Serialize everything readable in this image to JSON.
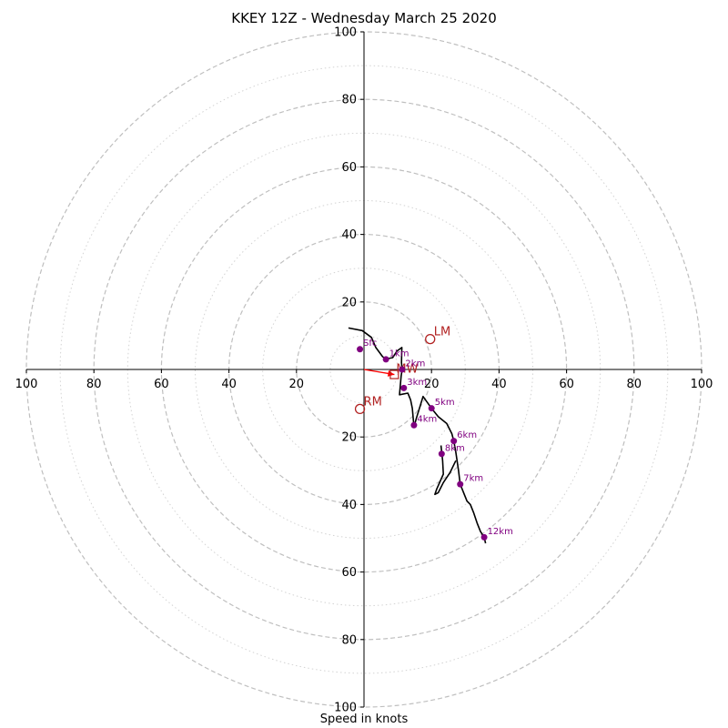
{
  "chart_data": {
    "type": "hodograph",
    "title": "KKEY 12Z - Wednesday March 25 2020",
    "xlabel": "Speed in knots",
    "ring_major": [
      20,
      40,
      60,
      80,
      100
    ],
    "ring_minor": [
      10,
      30,
      50,
      70,
      90
    ],
    "x_ticks": [
      {
        "value": -100,
        "label": "100"
      },
      {
        "value": -80,
        "label": "80"
      },
      {
        "value": -60,
        "label": "60"
      },
      {
        "value": -40,
        "label": "40"
      },
      {
        "value": -20,
        "label": "20"
      },
      {
        "value": 20,
        "label": "20"
      },
      {
        "value": 40,
        "label": "40"
      },
      {
        "value": 60,
        "label": "60"
      },
      {
        "value": 80,
        "label": "80"
      },
      {
        "value": 100,
        "label": "100"
      }
    ],
    "y_ticks": [
      {
        "value": 100,
        "label": "100"
      },
      {
        "value": 80,
        "label": "80"
      },
      {
        "value": 60,
        "label": "60"
      },
      {
        "value": 40,
        "label": "40"
      },
      {
        "value": 20,
        "label": "20"
      },
      {
        "value": -20,
        "label": "20"
      },
      {
        "value": -40,
        "label": "40"
      },
      {
        "value": -60,
        "label": "60"
      },
      {
        "value": -80,
        "label": "80"
      },
      {
        "value": -100,
        "label": "100"
      }
    ],
    "hodograph": [
      [
        -4.6,
        12.3
      ],
      [
        -0.5,
        11.5
      ],
      [
        2.2,
        9.5
      ],
      [
        3.5,
        6.5
      ],
      [
        5.5,
        3.8
      ],
      [
        6.5,
        3.1
      ],
      [
        8.5,
        3.5
      ],
      [
        9.8,
        5.5
      ],
      [
        11.2,
        6.5
      ],
      [
        11.1,
        2.0
      ],
      [
        11.3,
        0.0
      ],
      [
        11.0,
        -2.0
      ],
      [
        10.5,
        -7.5
      ],
      [
        13.0,
        -7.0
      ],
      [
        13.8,
        -9.0
      ],
      [
        14.3,
        -11.5
      ],
      [
        14.8,
        -17.0
      ],
      [
        15.5,
        -14.5
      ],
      [
        17.5,
        -8.0
      ],
      [
        20.0,
        -11.5
      ],
      [
        22.0,
        -14.0
      ],
      [
        24.5,
        -16.0
      ],
      [
        26.0,
        -19.0
      ],
      [
        26.6,
        -21.2
      ],
      [
        27.2,
        -24.5
      ],
      [
        28.0,
        -30.0
      ],
      [
        28.5,
        -34.0
      ],
      [
        30.5,
        -39.0
      ],
      [
        31.5,
        -40.0
      ],
      [
        32.5,
        -42.5
      ],
      [
        33.5,
        -45.5
      ],
      [
        34.5,
        -48.0
      ],
      [
        35.6,
        -49.7
      ],
      [
        36.0,
        -51.5
      ]
    ],
    "hodograph_loop": [
      [
        22.8,
        -22.5
      ],
      [
        23.3,
        -27.0
      ],
      [
        23.5,
        -31.0
      ],
      [
        21.5,
        -35.5
      ],
      [
        21.0,
        -37.0
      ],
      [
        22.0,
        -36.5
      ],
      [
        23.5,
        -33.5
      ],
      [
        25.5,
        -30.5
      ],
      [
        27.2,
        -27.0
      ]
    ],
    "height_markers": [
      {
        "label": "Sfc",
        "u": -1.2,
        "v": 6.0
      },
      {
        "label": "1km",
        "u": 6.5,
        "v": 3.0
      },
      {
        "label": "2km",
        "u": 11.3,
        "v": 0.0
      },
      {
        "label": "3km",
        "u": 11.8,
        "v": -5.5
      },
      {
        "label": "4km",
        "u": 14.8,
        "v": -16.5
      },
      {
        "label": "5km",
        "u": 20.0,
        "v": -11.5
      },
      {
        "label": "6km",
        "u": 26.6,
        "v": -21.2
      },
      {
        "label": "7km",
        "u": 28.5,
        "v": -34.0
      },
      {
        "label": "8km",
        "u": 23.0,
        "v": -25.0
      },
      {
        "label": "12km",
        "u": 35.6,
        "v": -49.7
      }
    ],
    "storm_motion": [
      {
        "label": "LM",
        "u": 19.6,
        "v": 9.0
      },
      {
        "label": "RM",
        "u": -1.2,
        "v": -11.7
      }
    ],
    "mean_wind": {
      "label": "MW",
      "u": 9.0,
      "v": -1.5
    },
    "bunkers_vector": {
      "from_u": 0.0,
      "from_v": 0.0,
      "to_u": 9.0,
      "to_v": -1.5
    },
    "colors": {
      "trace": "#000000",
      "height_marker": "#800080",
      "storm_motion": "#b22222",
      "vector": "#ff0000",
      "ring": "#bfbfbf",
      "axis": "#000000"
    }
  }
}
